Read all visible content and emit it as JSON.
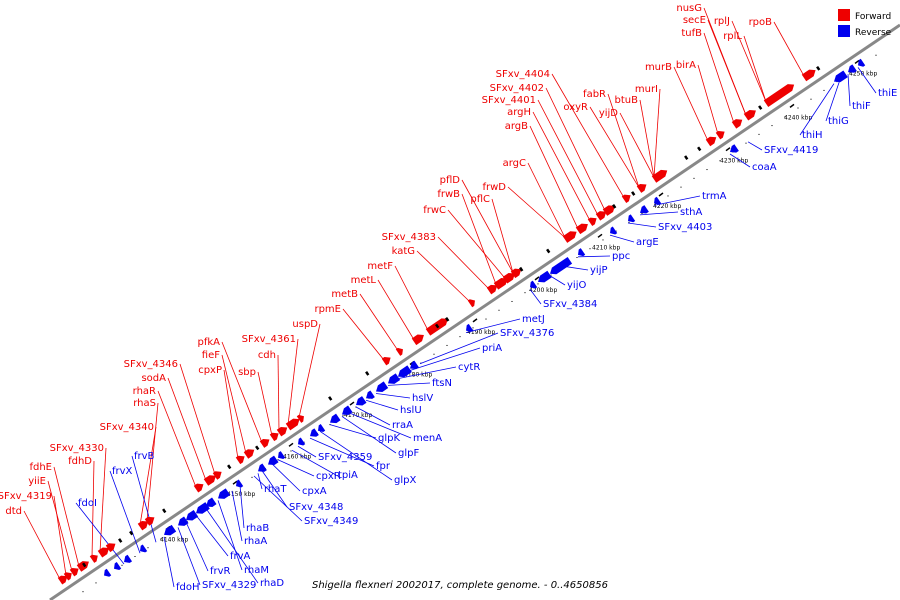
{
  "caption": "Shigella flexneri 2002017, complete genome. - 0..4650856",
  "legend": {
    "forward_label": "Forward",
    "reverse_label": "Reverse",
    "forward_color": "#ee0000",
    "reverse_color": "#0000ee"
  },
  "colors": {
    "forward": "#ee0000",
    "reverse": "#0000ee",
    "backbone": "#888888"
  },
  "ticks": [
    "4140 kbp",
    "4150 kbp",
    "4160 kbp",
    "4170 kbp",
    "4180 kbp",
    "4190 kbp",
    "4200 kbp",
    "4210 kbp",
    "4220 kbp",
    "4230 kbp",
    "4240 kbp",
    "4250 kbp"
  ],
  "forward_genes": [
    "dtd",
    "SFxv_4319",
    "yiiE",
    "fdhE",
    "fdhD",
    "SFxv_4330",
    "SFxv_4340",
    "rhaS",
    "rhaR",
    "sodA",
    "SFxv_4346",
    "cpxP",
    "fieF",
    "pfkA",
    "sbp",
    "cdh",
    "SFxv_4361",
    "uspD",
    "rpmE",
    "metB",
    "metL",
    "metF",
    "katG",
    "SFxv_4383",
    "frwC",
    "frwB",
    "pflD",
    "pflC",
    "frwD",
    "argC",
    "argB",
    "argH",
    "SFxv_4401",
    "SFxv_4402",
    "SFxv_4404",
    "oxyR",
    "fabR",
    "yijD",
    "btuB",
    "murI",
    "murB",
    "birA",
    "tufB",
    "secE",
    "nusG",
    "rplJ",
    "rplL",
    "rpoB"
  ],
  "reverse_genes": [
    "thiE",
    "thiF",
    "thiG",
    "thiH",
    "SFxv_4419",
    "coaA",
    "trmA",
    "sthA",
    "SFxv_4403",
    "argE",
    "ppc",
    "yijP",
    "yijO",
    "SFxv_4384",
    "metJ",
    "SFxv_4376",
    "priA",
    "cytR",
    "ftsN",
    "hslV",
    "hslU",
    "rraA",
    "menA",
    "glpF",
    "glpK",
    "glpX",
    "fpr",
    "SFxv_4359",
    "tpiA",
    "cpxR",
    "cpxA",
    "SFxv_4348",
    "SFxv_4349",
    "rhaT",
    "rhaB",
    "rhaA",
    "rhaM",
    "rhaD",
    "frvA",
    "frvR",
    "SFxv_4329",
    "fdoH",
    "fdoI",
    "frvX",
    "frvB"
  ]
}
